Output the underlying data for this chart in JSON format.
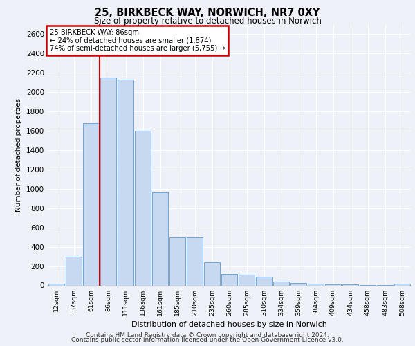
{
  "title1": "25, BIRKBECK WAY, NORWICH, NR7 0XY",
  "title2": "Size of property relative to detached houses in Norwich",
  "xlabel": "Distribution of detached houses by size in Norwich",
  "ylabel": "Number of detached properties",
  "bar_labels": [
    "12sqm",
    "37sqm",
    "61sqm",
    "86sqm",
    "111sqm",
    "136sqm",
    "161sqm",
    "185sqm",
    "210sqm",
    "235sqm",
    "260sqm",
    "285sqm",
    "310sqm",
    "334sqm",
    "359sqm",
    "384sqm",
    "409sqm",
    "434sqm",
    "458sqm",
    "483sqm",
    "508sqm"
  ],
  "bar_values": [
    20,
    300,
    1680,
    2150,
    2130,
    1600,
    960,
    500,
    500,
    240,
    120,
    110,
    90,
    40,
    25,
    15,
    10,
    8,
    5,
    3,
    20
  ],
  "bar_color": "#c6d9f0",
  "bar_edge_color": "#5b9bd5",
  "vline_x_index": 3,
  "vline_color": "#cc0000",
  "annotation_title": "25 BIRKBECK WAY: 86sqm",
  "annotation_line1": "← 24% of detached houses are smaller (1,874)",
  "annotation_line2": "74% of semi-detached houses are larger (5,755) →",
  "annotation_box_color": "#cc0000",
  "ylim": [
    0,
    2700
  ],
  "yticks": [
    0,
    200,
    400,
    600,
    800,
    1000,
    1200,
    1400,
    1600,
    1800,
    2000,
    2200,
    2400,
    2600
  ],
  "footer1": "Contains HM Land Registry data © Crown copyright and database right 2024.",
  "footer2": "Contains public sector information licensed under the Open Government Licence v3.0.",
  "background_color": "#eef2f8",
  "plot_bg_color": "#eef2f8"
}
